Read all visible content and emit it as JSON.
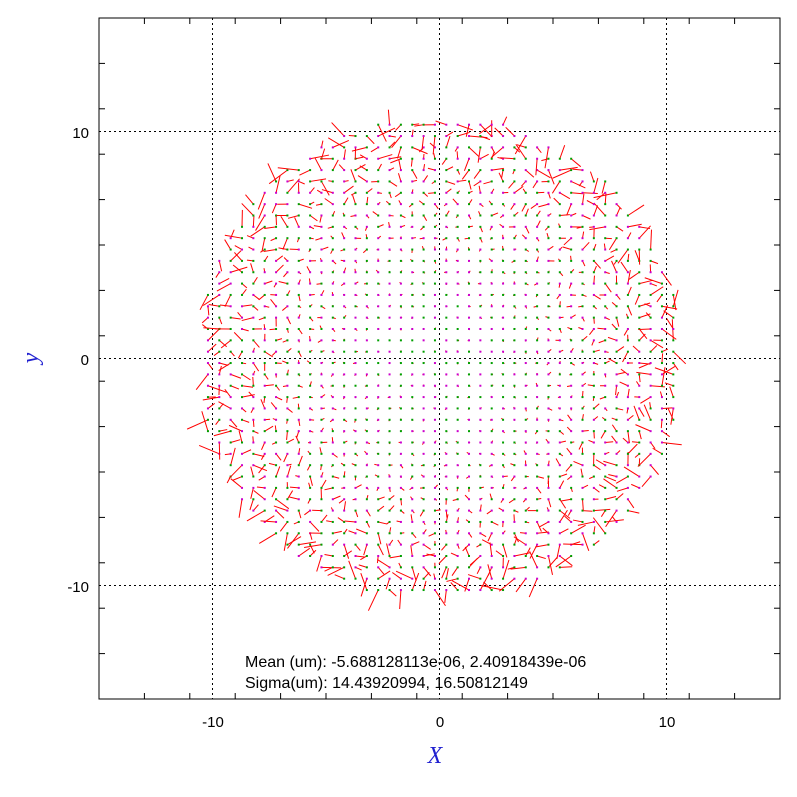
{
  "chart_data": {
    "type": "quiver",
    "title": "",
    "xlabel": "X",
    "ylabel": "y",
    "xlim": [
      -15,
      15
    ],
    "ylim": [
      -15,
      15
    ],
    "grid": true,
    "grid_ticks": [
      -10,
      0,
      10
    ],
    "x_tick_labels": [
      "-10",
      "0",
      "10"
    ],
    "y_tick_labels": [
      "-10",
      "0",
      "10"
    ],
    "minor_tick_step": 2,
    "field": {
      "grid_step": 0.5,
      "aperture_radius": 10.7,
      "vector_scale": 1.0,
      "residual_color": "#ff0000",
      "point_color": "#00a000",
      "point_color_alt": "#cc00cc"
    },
    "stats": {
      "mean": "Mean (um): -5.688128113e-06, 2.40918439e-06",
      "sigma": "Sigma(um): 14.43920994, 16.50812149"
    },
    "colors": {
      "axis_label": "#1f1fd0",
      "grid": "#000000",
      "frame": "#000000"
    }
  }
}
